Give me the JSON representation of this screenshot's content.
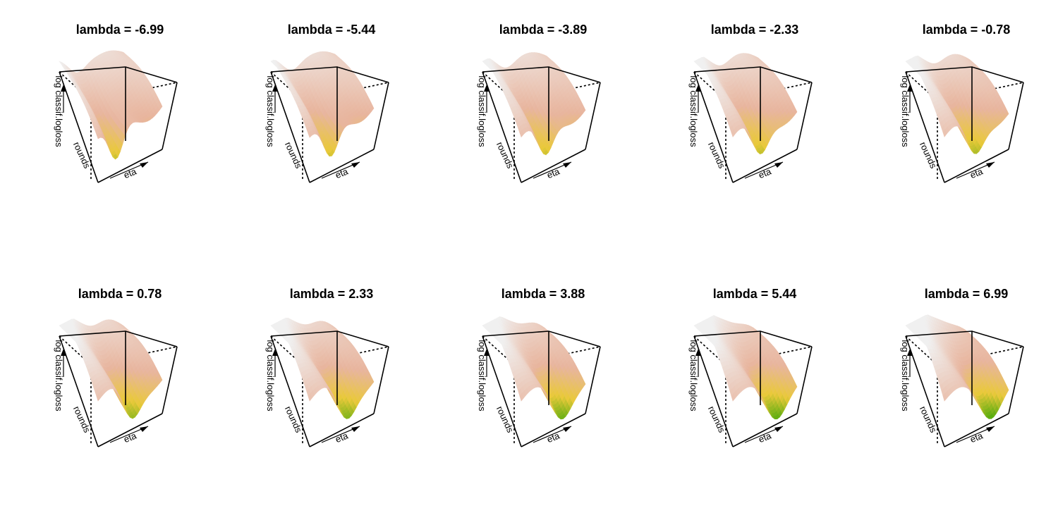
{
  "chart_data": {
    "type": "surface3d",
    "layout": {
      "rows": 2,
      "cols": 5
    },
    "axis_labels": {
      "x": "eta",
      "y": "rounds",
      "z": "log classif.logloss"
    },
    "colors": {
      "low": "#27a300",
      "mid": "#e9c93a",
      "high": "#e8b59e",
      "top": "#f0f0f0"
    },
    "panels": [
      {
        "title": "lambda = -6.99",
        "lambda": -6.99
      },
      {
        "title": "lambda = -5.44",
        "lambda": -5.44
      },
      {
        "title": "lambda = -3.89",
        "lambda": -3.89
      },
      {
        "title": "lambda = -2.33",
        "lambda": -2.33
      },
      {
        "title": "lambda = -0.78",
        "lambda": -0.78
      },
      {
        "title": "lambda = 0.78",
        "lambda": 0.78
      },
      {
        "title": "lambda = 2.33",
        "lambda": 2.33
      },
      {
        "title": "lambda = 3.88",
        "lambda": 3.88
      },
      {
        "title": "lambda = 5.44",
        "lambda": 5.44
      },
      {
        "title": "lambda = 6.99",
        "lambda": 6.99
      }
    ]
  }
}
